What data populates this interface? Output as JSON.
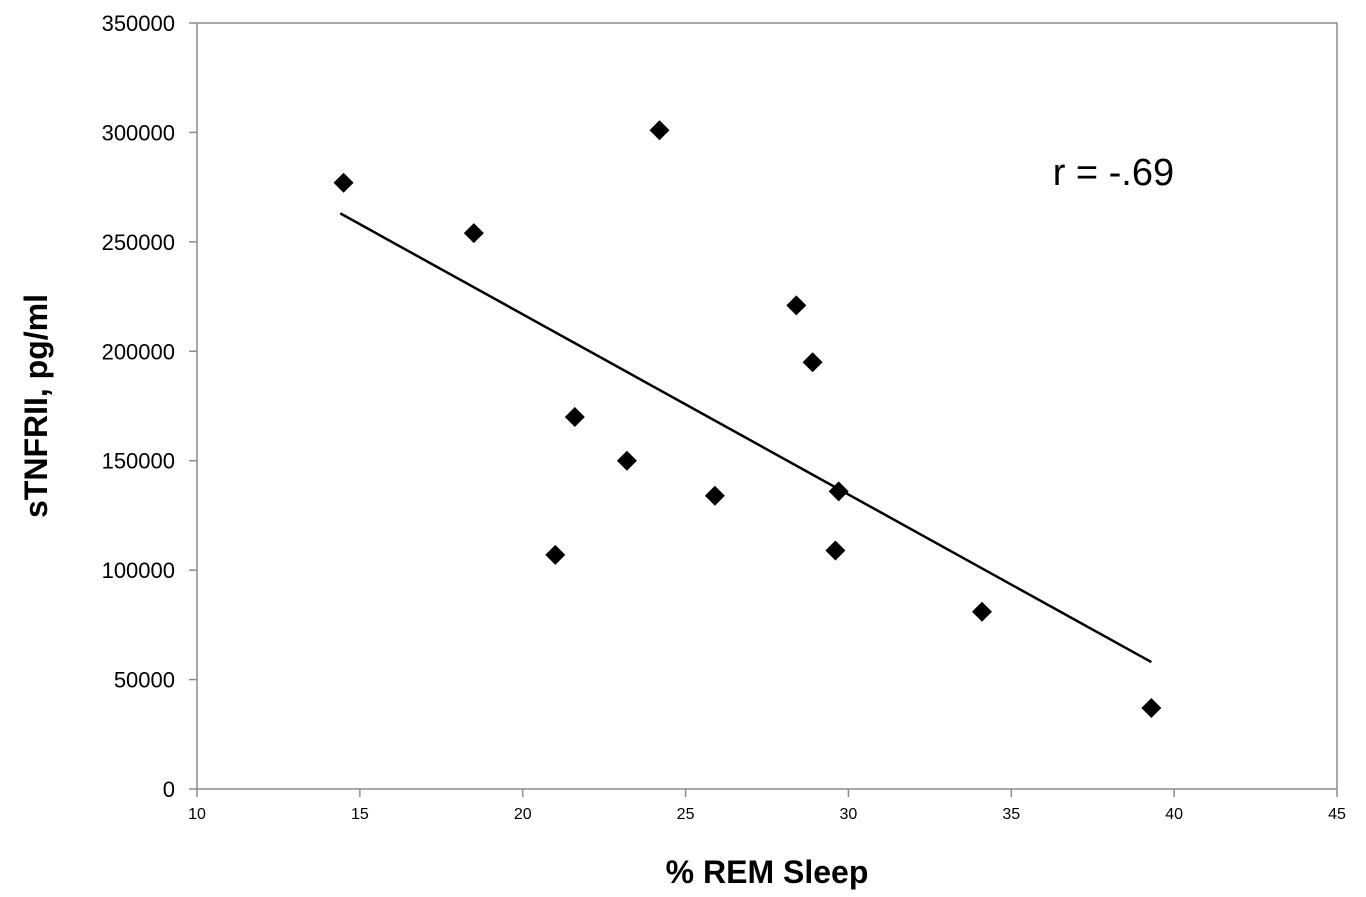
{
  "chart_data": {
    "type": "scatter",
    "xlabel": "% REM Sleep",
    "ylabel": "sTNFRII, pg/ml",
    "xlim": [
      10,
      45
    ],
    "ylim": [
      0,
      350000
    ],
    "xticks": [
      "10",
      "15",
      "20",
      "25",
      "30",
      "35",
      "40",
      "45"
    ],
    "yticks": [
      "0",
      "50000",
      "100000",
      "150000",
      "200000",
      "250000",
      "300000",
      "350000"
    ],
    "grid": false,
    "legend": "none",
    "series": [
      {
        "points": [
          {
            "x": 14.5,
            "y": 277000
          },
          {
            "x": 18.5,
            "y": 254000
          },
          {
            "x": 24.2,
            "y": 301000
          },
          {
            "x": 21.6,
            "y": 170000
          },
          {
            "x": 23.2,
            "y": 150000
          },
          {
            "x": 21.0,
            "y": 107000
          },
          {
            "x": 25.9,
            "y": 134000
          },
          {
            "x": 28.4,
            "y": 221000
          },
          {
            "x": 28.9,
            "y": 195000
          },
          {
            "x": 29.7,
            "y": 136000
          },
          {
            "x": 29.6,
            "y": 109000
          },
          {
            "x": 34.1,
            "y": 81000
          },
          {
            "x": 39.3,
            "y": 37000
          }
        ]
      }
    ],
    "trendline": {
      "x1": 14.4,
      "y1": 263000,
      "x2": 39.3,
      "y2": 58000
    },
    "annotation": {
      "text": "r = -.69",
      "x": 40.0,
      "y": 282000
    },
    "colors": {
      "marker": "#000000",
      "line": "#000000",
      "axis": "#8c8c8c"
    }
  }
}
